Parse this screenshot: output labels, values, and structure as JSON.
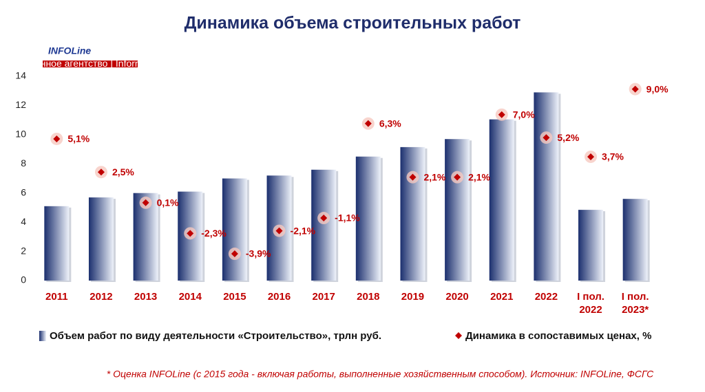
{
  "chart_data": {
    "type": "bar",
    "title": "Динамика объема строительных работ",
    "logo": {
      "name": "INFOLine",
      "caption": "информационное агентство | Information agency"
    },
    "categories": [
      "2011",
      "2012",
      "2013",
      "2014",
      "2015",
      "2016",
      "2017",
      "2018",
      "2019",
      "2020",
      "2021",
      "2022",
      "I пол.\n2022",
      "I пол.\n2023*"
    ],
    "series": [
      {
        "name": "Объем работ по виду деятельности «Строительство», трлн руб.",
        "type": "bar",
        "color": "#1b2f6e",
        "values": [
          5.1,
          5.7,
          6.0,
          6.1,
          7.0,
          7.2,
          7.6,
          8.5,
          9.15,
          9.7,
          11.05,
          12.9,
          4.85,
          5.6
        ]
      },
      {
        "name": "Динамика в сопоставимых ценах, %",
        "type": "scatter",
        "axis": "y2",
        "color": "#c00000",
        "values": [
          5.1,
          2.5,
          0.1,
          -2.3,
          -3.9,
          -2.1,
          -1.1,
          6.3,
          2.1,
          2.1,
          7.0,
          5.2,
          3.7,
          9.0
        ],
        "value_labels": [
          "5,1%",
          "2,5%",
          "0,1%",
          "-2,3%",
          "-3,9%",
          "-2,1%",
          "-1,1%",
          "6,3%",
          "2,1%",
          "2,1%",
          "7,0%",
          "5,2%",
          "3,7%",
          "9,0%"
        ]
      }
    ],
    "ylim": [
      0,
      14
    ],
    "yticks": [
      0,
      2,
      4,
      6,
      8,
      10,
      12,
      14
    ],
    "y2lim": [
      -6,
      10
    ],
    "grid": false,
    "legend": "bottom",
    "footnote": "* Оценка INFOLine (с 2015 года - включая работы, выполненные хозяйственным способом). Источник: INFOLine, ФСГС"
  }
}
